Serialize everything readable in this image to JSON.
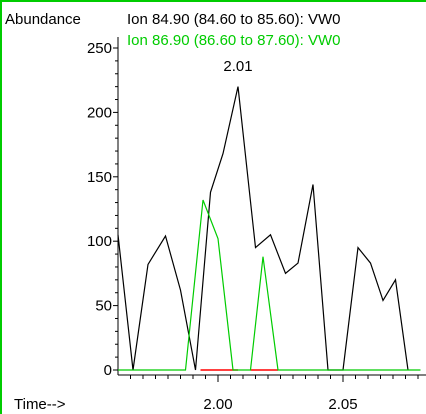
{
  "chart_data": {
    "type": "line",
    "ylabel": "Abundance",
    "xlabel": "Time-->",
    "xlim": [
      1.96,
      2.08
    ],
    "ylim": [
      0,
      250
    ],
    "y_ticks": [
      0,
      50,
      100,
      150,
      200,
      250
    ],
    "x_ticks": [
      2.0,
      2.05
    ],
    "x_tick_labels": [
      "2.00",
      "2.05"
    ],
    "peak_label": "2.01",
    "peak_label_x": 2.008,
    "peak_label_y": 232,
    "colors": {
      "series_black": "#000000",
      "series_green": "#00cc00",
      "baseline_red": "#ff0000",
      "frame": "#00cc00"
    },
    "series": [
      {
        "name": "Ion  84.90 (84.60 to 85.60): VW0",
        "color": "#000000",
        "x": [
          1.96,
          1.966,
          1.972,
          1.979,
          1.985,
          1.991,
          1.997,
          2.002,
          2.008,
          2.015,
          2.021,
          2.027,
          2.032,
          2.038,
          2.044,
          2.05,
          2.056,
          2.061,
          2.066,
          2.071,
          2.076
        ],
        "y": [
          105,
          0,
          82,
          104,
          62,
          0,
          138,
          168,
          220,
          95,
          105,
          75,
          83,
          144,
          0,
          0,
          95,
          83,
          54,
          70,
          0
        ]
      },
      {
        "name": "Ion  86.90 (86.60 to 87.60): VW0",
        "color": "#00cc00",
        "x": [
          1.96,
          1.987,
          1.994,
          2.0,
          2.006,
          2.013,
          2.018,
          2.024,
          2.081
        ],
        "y": [
          0,
          0,
          132,
          102,
          0,
          0,
          88,
          0,
          0
        ]
      }
    ]
  },
  "baseline_segments": [
    {
      "color": "#ff0000",
      "x": [
        1.993,
        2.008
      ]
    },
    {
      "color": "#ff0000",
      "x": [
        2.013,
        2.024
      ]
    }
  ]
}
